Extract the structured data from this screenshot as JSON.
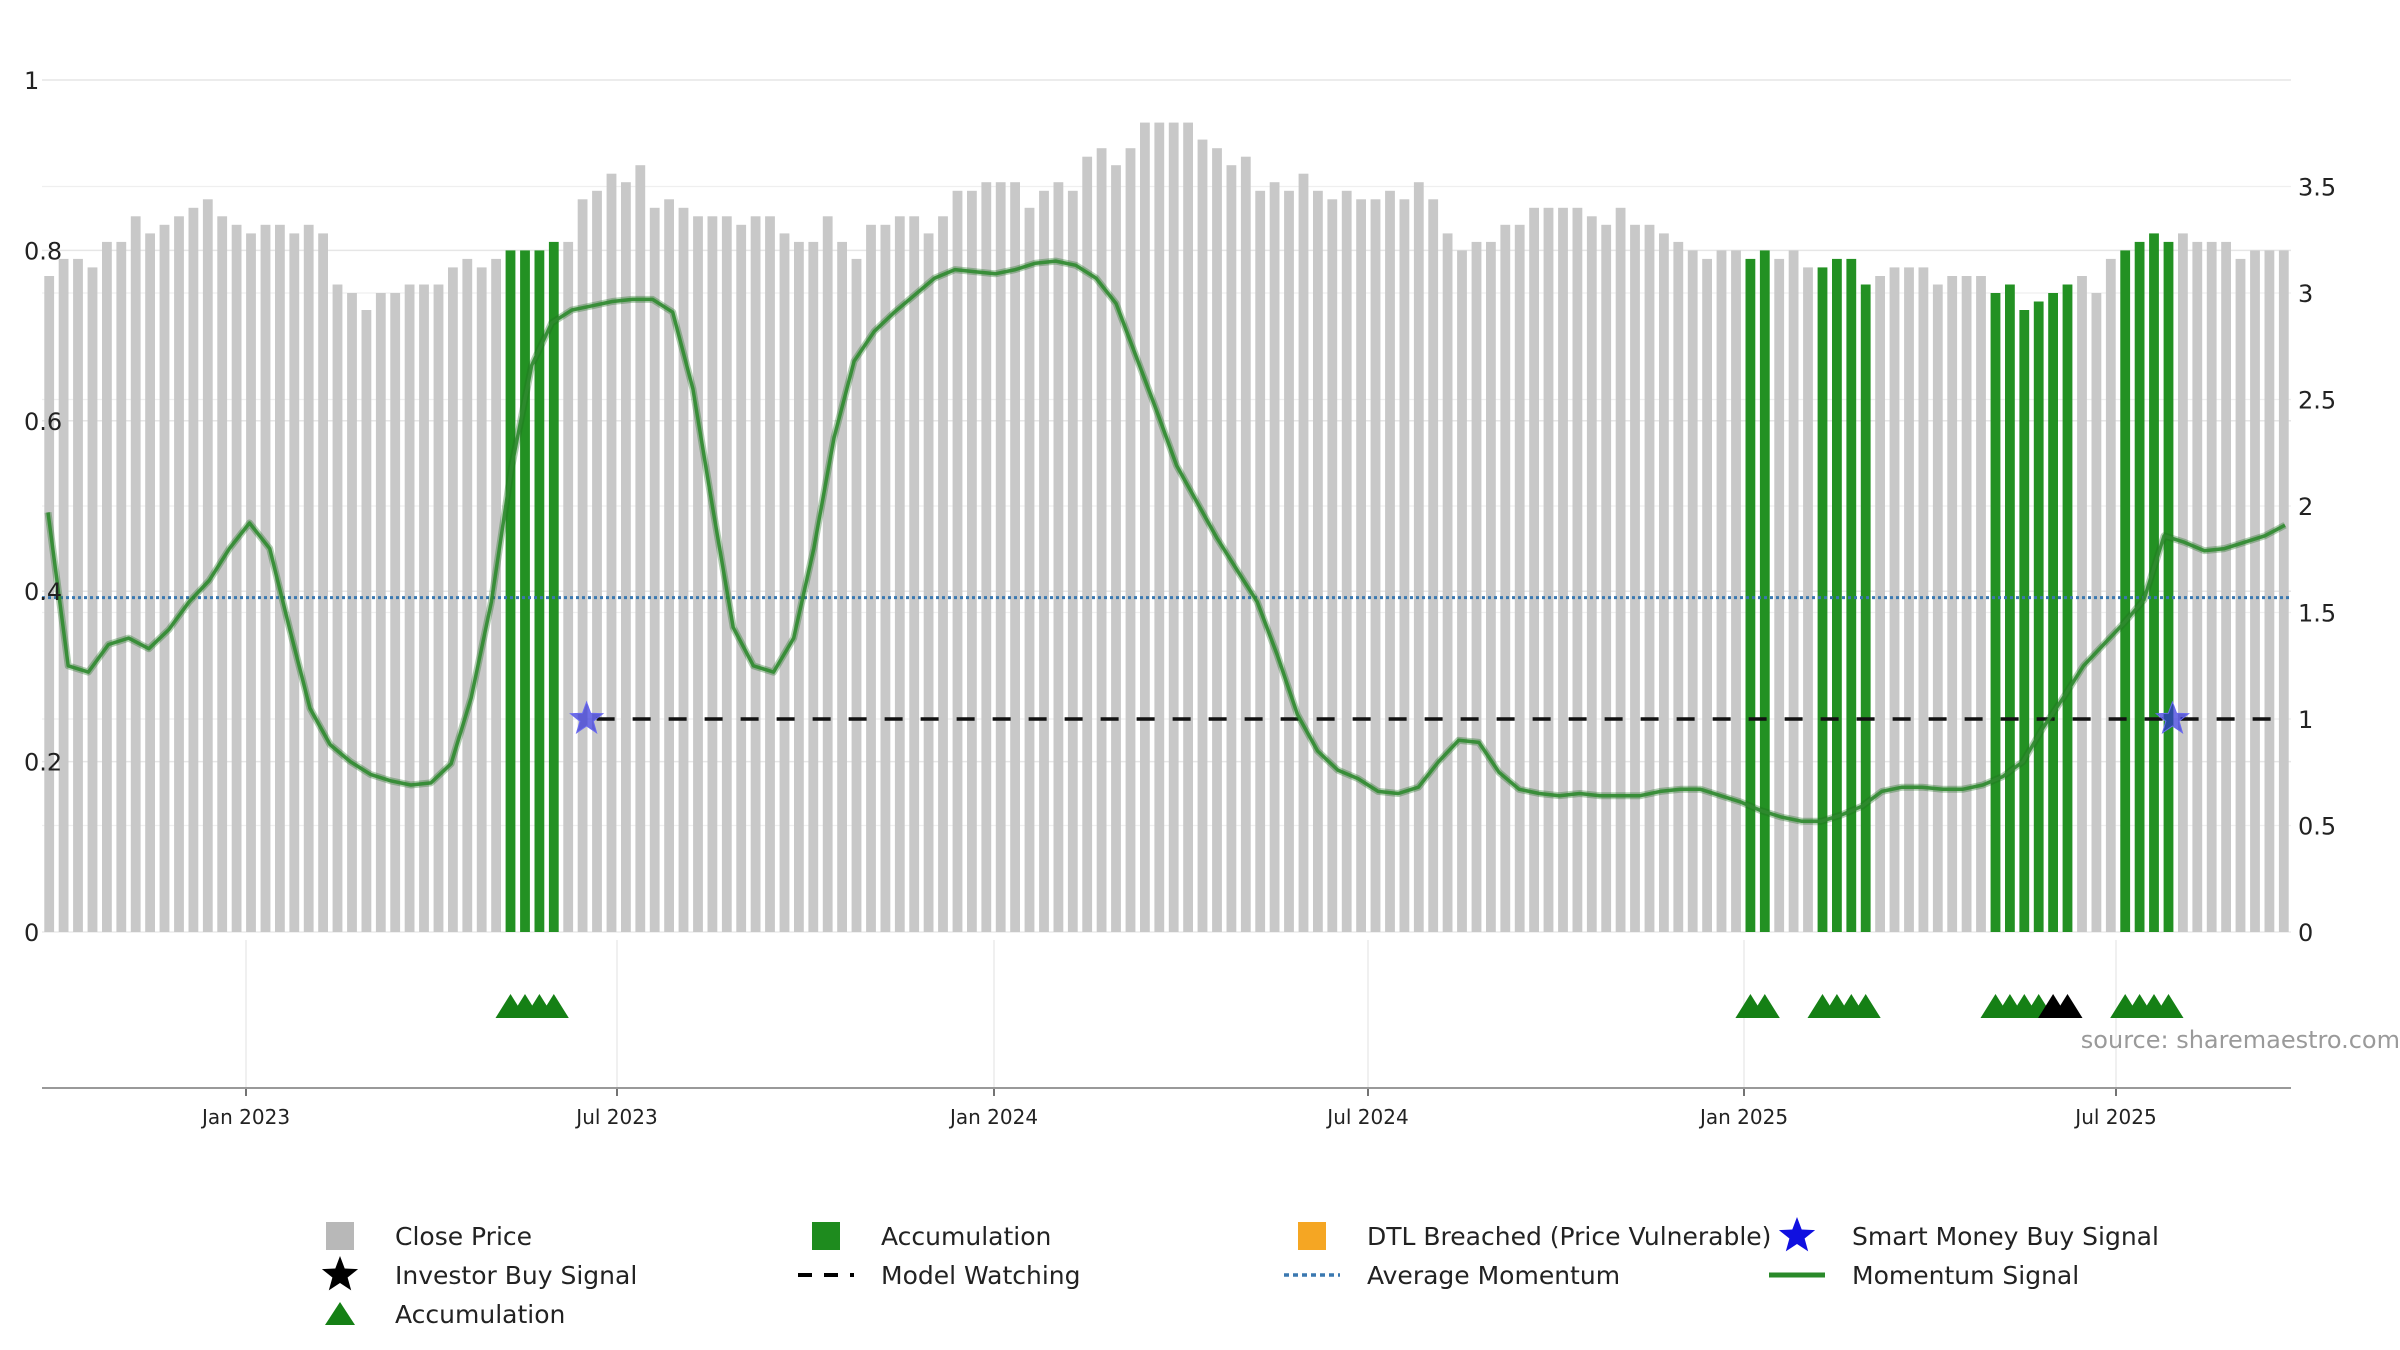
{
  "chart_data": {
    "type": "bar",
    "source_label": "source: sharemaestro.com",
    "x_ticks": [
      "Jan 2023",
      "Jul 2023",
      "Jan 2024",
      "Jul 2024",
      "Jan 2025",
      "Jul 2025"
    ],
    "left_axis": {
      "ticks": [
        "0",
        "0.2",
        "0.4",
        "0.6",
        "0.8",
        "1"
      ],
      "ylim": [
        0,
        1
      ]
    },
    "right_axis": {
      "ticks": [
        "0",
        "0.5",
        "1",
        "1.5",
        "2",
        "2.5",
        "3",
        "3.5"
      ],
      "ylim": [
        0,
        4
      ]
    },
    "close_price": [
      0.77,
      0.79,
      0.79,
      0.78,
      0.81,
      0.81,
      0.84,
      0.82,
      0.83,
      0.84,
      0.85,
      0.86,
      0.84,
      0.83,
      0.82,
      0.83,
      0.83,
      0.82,
      0.83,
      0.82,
      0.76,
      0.75,
      0.73,
      0.75,
      0.75,
      0.76,
      0.76,
      0.76,
      0.78,
      0.79,
      0.78,
      0.79,
      0.8,
      0.8,
      0.8,
      0.81,
      0.81,
      0.86,
      0.87,
      0.89,
      0.88,
      0.9,
      0.85,
      0.86,
      0.85,
      0.84,
      0.84,
      0.84,
      0.83,
      0.84,
      0.84,
      0.82,
      0.81,
      0.81,
      0.84,
      0.81,
      0.79,
      0.83,
      0.83,
      0.84,
      0.84,
      0.82,
      0.84,
      0.87,
      0.87,
      0.88,
      0.88,
      0.88,
      0.85,
      0.87,
      0.88,
      0.87,
      0.91,
      0.92,
      0.9,
      0.92,
      0.95,
      0.95,
      0.95,
      0.95,
      0.93,
      0.92,
      0.9,
      0.91,
      0.87,
      0.88,
      0.87,
      0.89,
      0.87,
      0.86,
      0.87,
      0.86,
      0.86,
      0.87,
      0.86,
      0.88,
      0.86,
      0.82,
      0.8,
      0.81,
      0.81,
      0.83,
      0.83,
      0.85,
      0.85,
      0.85,
      0.85,
      0.84,
      0.83,
      0.85,
      0.83,
      0.83,
      0.82,
      0.81,
      0.8,
      0.79,
      0.8,
      0.8,
      0.79,
      0.8,
      0.79,
      0.8,
      0.78,
      0.78,
      0.79,
      0.79,
      0.76,
      0.77,
      0.78,
      0.78,
      0.78,
      0.76,
      0.77,
      0.77,
      0.77,
      0.75,
      0.76,
      0.73,
      0.74,
      0.75,
      0.76,
      0.77,
      0.75,
      0.79,
      0.8,
      0.81,
      0.82,
      0.81,
      0.82,
      0.81,
      0.81,
      0.81,
      0.79,
      0.8,
      0.8,
      0.8
    ],
    "accumulation_bar_indices": [
      32,
      33,
      34,
      35,
      118,
      119,
      123,
      124,
      125,
      126,
      135,
      136,
      137,
      138,
      139,
      140,
      144,
      145,
      146,
      147
    ],
    "accumulation_triangle_indices": [
      32,
      33,
      34,
      35,
      118,
      119,
      123,
      124,
      125,
      126,
      135,
      136,
      137,
      138,
      144,
      145,
      146,
      147
    ],
    "investor_buy_signal_indices": [
      139,
      140
    ],
    "smart_money_buy_signals": [
      {
        "index": 37,
        "value": 1.0
      },
      {
        "index": 147,
        "value": 1.0
      }
    ],
    "model_watching": {
      "start_index": 37,
      "end_index": 156,
      "value": 1.0
    },
    "average_momentum": 1.57,
    "momentum_signal": [
      1.97,
      1.25,
      1.22,
      1.35,
      1.38,
      1.33,
      1.42,
      1.55,
      1.65,
      1.8,
      1.92,
      1.8,
      1.42,
      1.05,
      0.88,
      0.8,
      0.74,
      0.71,
      0.69,
      0.7,
      0.79,
      1.1,
      1.55,
      2.18,
      2.66,
      2.86,
      2.92,
      2.94,
      2.96,
      2.97,
      2.97,
      2.91,
      2.55,
      1.98,
      1.43,
      1.25,
      1.22,
      1.38,
      1.8,
      2.32,
      2.68,
      2.82,
      2.91,
      2.99,
      3.07,
      3.11,
      3.1,
      3.09,
      3.11,
      3.14,
      3.15,
      3.13,
      3.07,
      2.95,
      2.7,
      2.45,
      2.19,
      2.02,
      1.85,
      1.7,
      1.55,
      1.3,
      1.02,
      0.85,
      0.76,
      0.72,
      0.66,
      0.65,
      0.68,
      0.8,
      0.9,
      0.89,
      0.75,
      0.67,
      0.65,
      0.64,
      0.65,
      0.64,
      0.64,
      0.64,
      0.66,
      0.67,
      0.67,
      0.64,
      0.61,
      0.57,
      0.54,
      0.52,
      0.52,
      0.55,
      0.59,
      0.66,
      0.68,
      0.68,
      0.67,
      0.67,
      0.69,
      0.73,
      0.8,
      0.96,
      1.1,
      1.25,
      1.35,
      1.45,
      1.56,
      1.86,
      1.83,
      1.79,
      1.8,
      1.83,
      1.86,
      1.91
    ],
    "legend": [
      {
        "label": "Close Price",
        "symbol": "square",
        "color": "#b8b8b8"
      },
      {
        "label": "Accumulation",
        "symbol": "square",
        "color": "#1e8b1e"
      },
      {
        "label": "DTL Breached (Price Vulnerable)",
        "symbol": "square",
        "color": "#f5a623"
      },
      {
        "label": "Smart Money Buy Signal",
        "symbol": "star",
        "color": "#1010e0"
      },
      {
        "label": "Investor Buy Signal",
        "symbol": "star",
        "color": "#000000"
      },
      {
        "label": "Model Watching",
        "symbol": "dash",
        "color": "#000000"
      },
      {
        "label": "Average Momentum",
        "symbol": "dot",
        "color": "#3a78b0"
      },
      {
        "label": "Momentum Signal",
        "symbol": "line",
        "color": "#2a8a2a"
      },
      {
        "label": "Accumulation",
        "symbol": "triangle",
        "color": "#158015"
      }
    ],
    "colors": {
      "close_price": "#c8c8c8",
      "accumulation": "#239123",
      "momentum": "#2f8a2f",
      "average_momentum": "#3a78b0",
      "model_watching": "#111111",
      "smart_money": "#3030d8",
      "investor": "#000000",
      "triangle": "#158015",
      "grid": "#e6e6e6",
      "axis": "#444444"
    }
  }
}
